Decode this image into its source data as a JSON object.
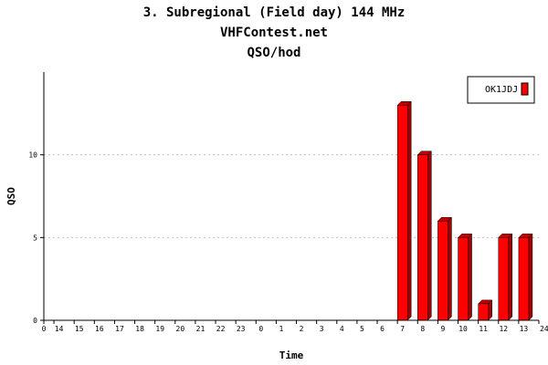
{
  "chart_data": {
    "type": "bar",
    "title": "3. Subregional (Field day) 144 MHz",
    "subtitle": "VHFContest.net",
    "subtitle2": "QSO/hod",
    "xlabel": "Time",
    "ylabel": "QSO",
    "x_ticks": [
      "0",
      "14",
      "15",
      "16",
      "17",
      "18",
      "19",
      "20",
      "21",
      "22",
      "23",
      "0",
      "1",
      "2",
      "3",
      "4",
      "5",
      "6",
      "7",
      "8",
      "9",
      "10",
      "11",
      "12",
      "13",
      "24"
    ],
    "categories": [
      "14",
      "15",
      "16",
      "17",
      "18",
      "19",
      "20",
      "21",
      "22",
      "23",
      "0",
      "1",
      "2",
      "3",
      "4",
      "5",
      "6",
      "7",
      "8",
      "9",
      "10",
      "11",
      "12",
      "13"
    ],
    "series": [
      {
        "name": "OK1JDJ",
        "values": [
          0,
          0,
          0,
          0,
          0,
          0,
          0,
          0,
          0,
          0,
          0,
          0,
          0,
          0,
          0,
          0,
          0,
          13,
          10,
          6,
          5,
          1,
          5,
          5
        ]
      }
    ],
    "y_ticks": [
      0,
      5,
      10
    ],
    "ylim": [
      0,
      15
    ],
    "grid": "horizontal-dotted",
    "legend_position": "top-right",
    "colors": {
      "bar": "#ff0000",
      "bar_side": "#a00000",
      "bar_top": "#c00000",
      "grid": "#c0c0c0",
      "axis": "#000000"
    }
  }
}
